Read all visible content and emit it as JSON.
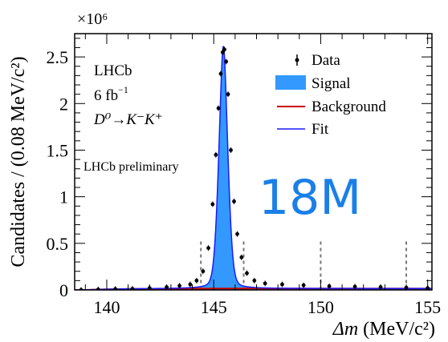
{
  "chart_data": {
    "type": "line",
    "xlabel_symbol": "Δm",
    "xlabel_unit": "(MeV/c²)",
    "ylabel": "Candidates / (0.08 MeV/c²)",
    "y_multiplier": "×10⁶",
    "xlim": [
      138.5,
      155.2
    ],
    "ylim": [
      0,
      2.75
    ],
    "x_ticks": [
      "140",
      "145",
      "150",
      "155"
    ],
    "y_ticks": [
      "0",
      "0.5",
      "1",
      "1.5",
      "2",
      "2.5"
    ],
    "series": [
      {
        "name": "Data",
        "x": [
          138.8,
          139.6,
          140.4,
          141.2,
          142.0,
          142.8,
          143.4,
          143.9,
          144.2,
          144.5,
          144.75,
          144.95,
          145.1,
          145.22,
          145.33,
          145.42,
          145.5,
          145.58,
          145.67,
          145.8,
          145.95,
          146.1,
          146.3,
          146.55,
          146.9,
          147.4,
          148.2,
          149.2,
          150.4,
          151.6,
          152.8,
          154.0,
          155.0
        ],
        "y": [
          0.0,
          0.005,
          0.01,
          0.012,
          0.02,
          0.03,
          0.045,
          0.06,
          0.1,
          0.2,
          0.45,
          0.92,
          1.45,
          1.95,
          2.32,
          2.55,
          2.58,
          2.45,
          2.1,
          1.5,
          0.95,
          0.6,
          0.35,
          0.18,
          0.1,
          0.07,
          0.06,
          0.05,
          0.04,
          0.035,
          0.03,
          0.025,
          0.02
        ]
      },
      {
        "name": "Signal"
      },
      {
        "name": "Background"
      },
      {
        "name": "Fit"
      }
    ],
    "signal_peak": 2.6,
    "background_level": 0.015,
    "dashed_lines_x": [
      144.4,
      146.4,
      150.0,
      154.0
    ],
    "annotations": {
      "experiment": "LHCb",
      "luminosity_value": "6 fb",
      "luminosity_exp": "−1",
      "decay": "D⁰→K⁻K⁺",
      "status": "LHCb preliminary",
      "big_count": "18M"
    },
    "legend_position": "top-right",
    "colors": {
      "signal": "#3399ff",
      "background": "#cc0000",
      "fit": "#1a1aff",
      "data": "#000000",
      "big_count": "#1a7fe8"
    }
  }
}
